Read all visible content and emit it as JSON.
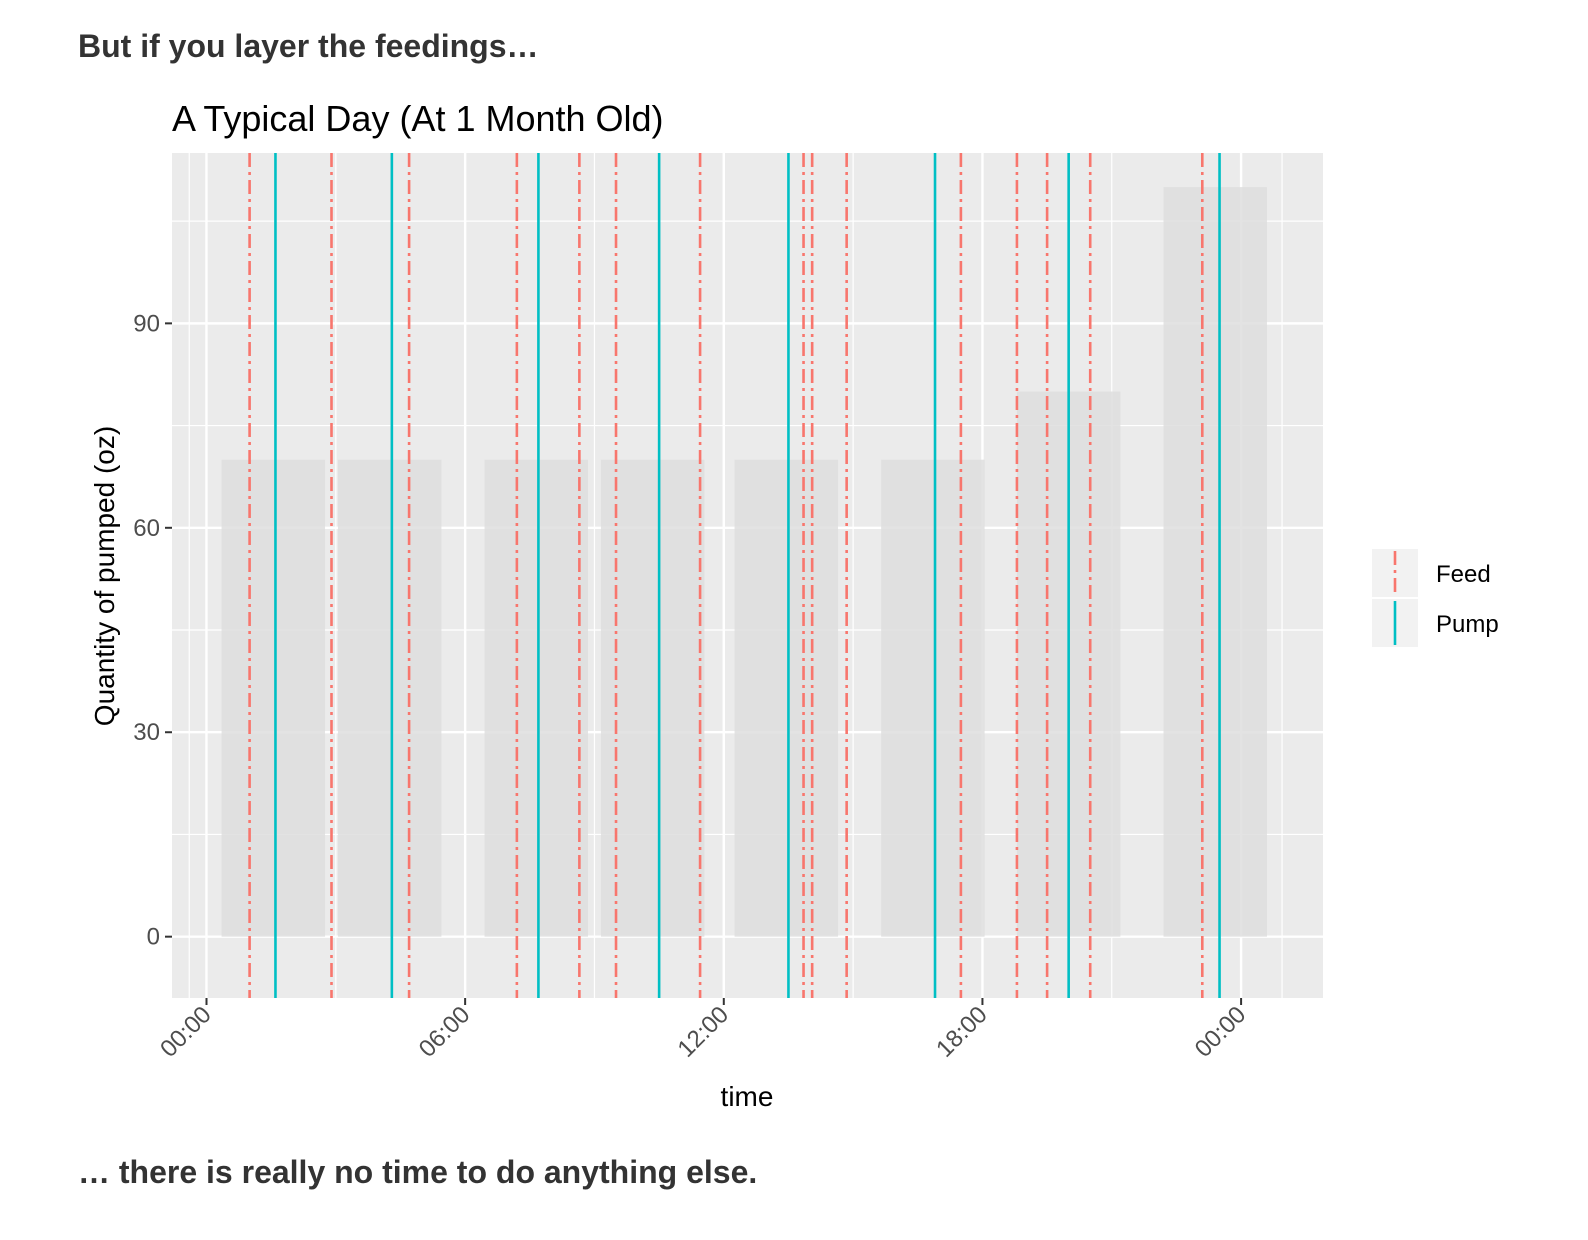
{
  "page": {
    "intro_text": "But if you layer the feedings…",
    "outro_text": "… there is really no time to do anything else."
  },
  "chart_data": {
    "type": "bar",
    "title": "A Typical Day (At 1 Month Old)",
    "xlabel": "time",
    "ylabel": "Quantity of pumped (oz)",
    "x_unit": "hours (0 = 00:00)",
    "xlim": [
      -0.8,
      25.9
    ],
    "ylim": [
      -9,
      115
    ],
    "x_ticks": [
      0,
      6,
      12,
      18,
      24
    ],
    "x_tick_labels": [
      "00:00",
      "06:00",
      "12:00",
      "18:00",
      "00:00"
    ],
    "y_ticks": [
      0,
      30,
      60,
      90
    ],
    "y_tick_labels": [
      "0",
      "30",
      "60",
      "90"
    ],
    "grid": true,
    "legend_position": "right",
    "bars": {
      "description": "grey bars of pumped quantity",
      "color": "#dedede",
      "items": [
        {
          "start": 0.35,
          "end": 2.75,
          "value": 70
        },
        {
          "start": 3.05,
          "end": 5.45,
          "value": 70
        },
        {
          "start": 6.45,
          "end": 8.85,
          "value": 70
        },
        {
          "start": 9.15,
          "end": 11.55,
          "value": 70
        },
        {
          "start": 12.25,
          "end": 14.65,
          "value": 70
        },
        {
          "start": 15.65,
          "end": 18.05,
          "value": 70
        },
        {
          "start": 18.8,
          "end": 21.2,
          "value": 80
        },
        {
          "start": 22.2,
          "end": 24.6,
          "value": 110
        }
      ]
    },
    "series": [
      {
        "name": "Feed",
        "color": "#f8766d",
        "linetype": "dashed",
        "x": [
          1.0,
          2.9,
          4.7,
          7.2,
          8.65,
          9.5,
          11.45,
          13.85,
          14.05,
          14.85,
          17.5,
          18.8,
          19.5,
          20.5,
          23.1
        ]
      },
      {
        "name": "Pump",
        "color": "#00bfc4",
        "linetype": "solid",
        "x": [
          1.6,
          4.3,
          7.7,
          10.5,
          13.5,
          16.9,
          20.0,
          23.5
        ]
      }
    ]
  }
}
